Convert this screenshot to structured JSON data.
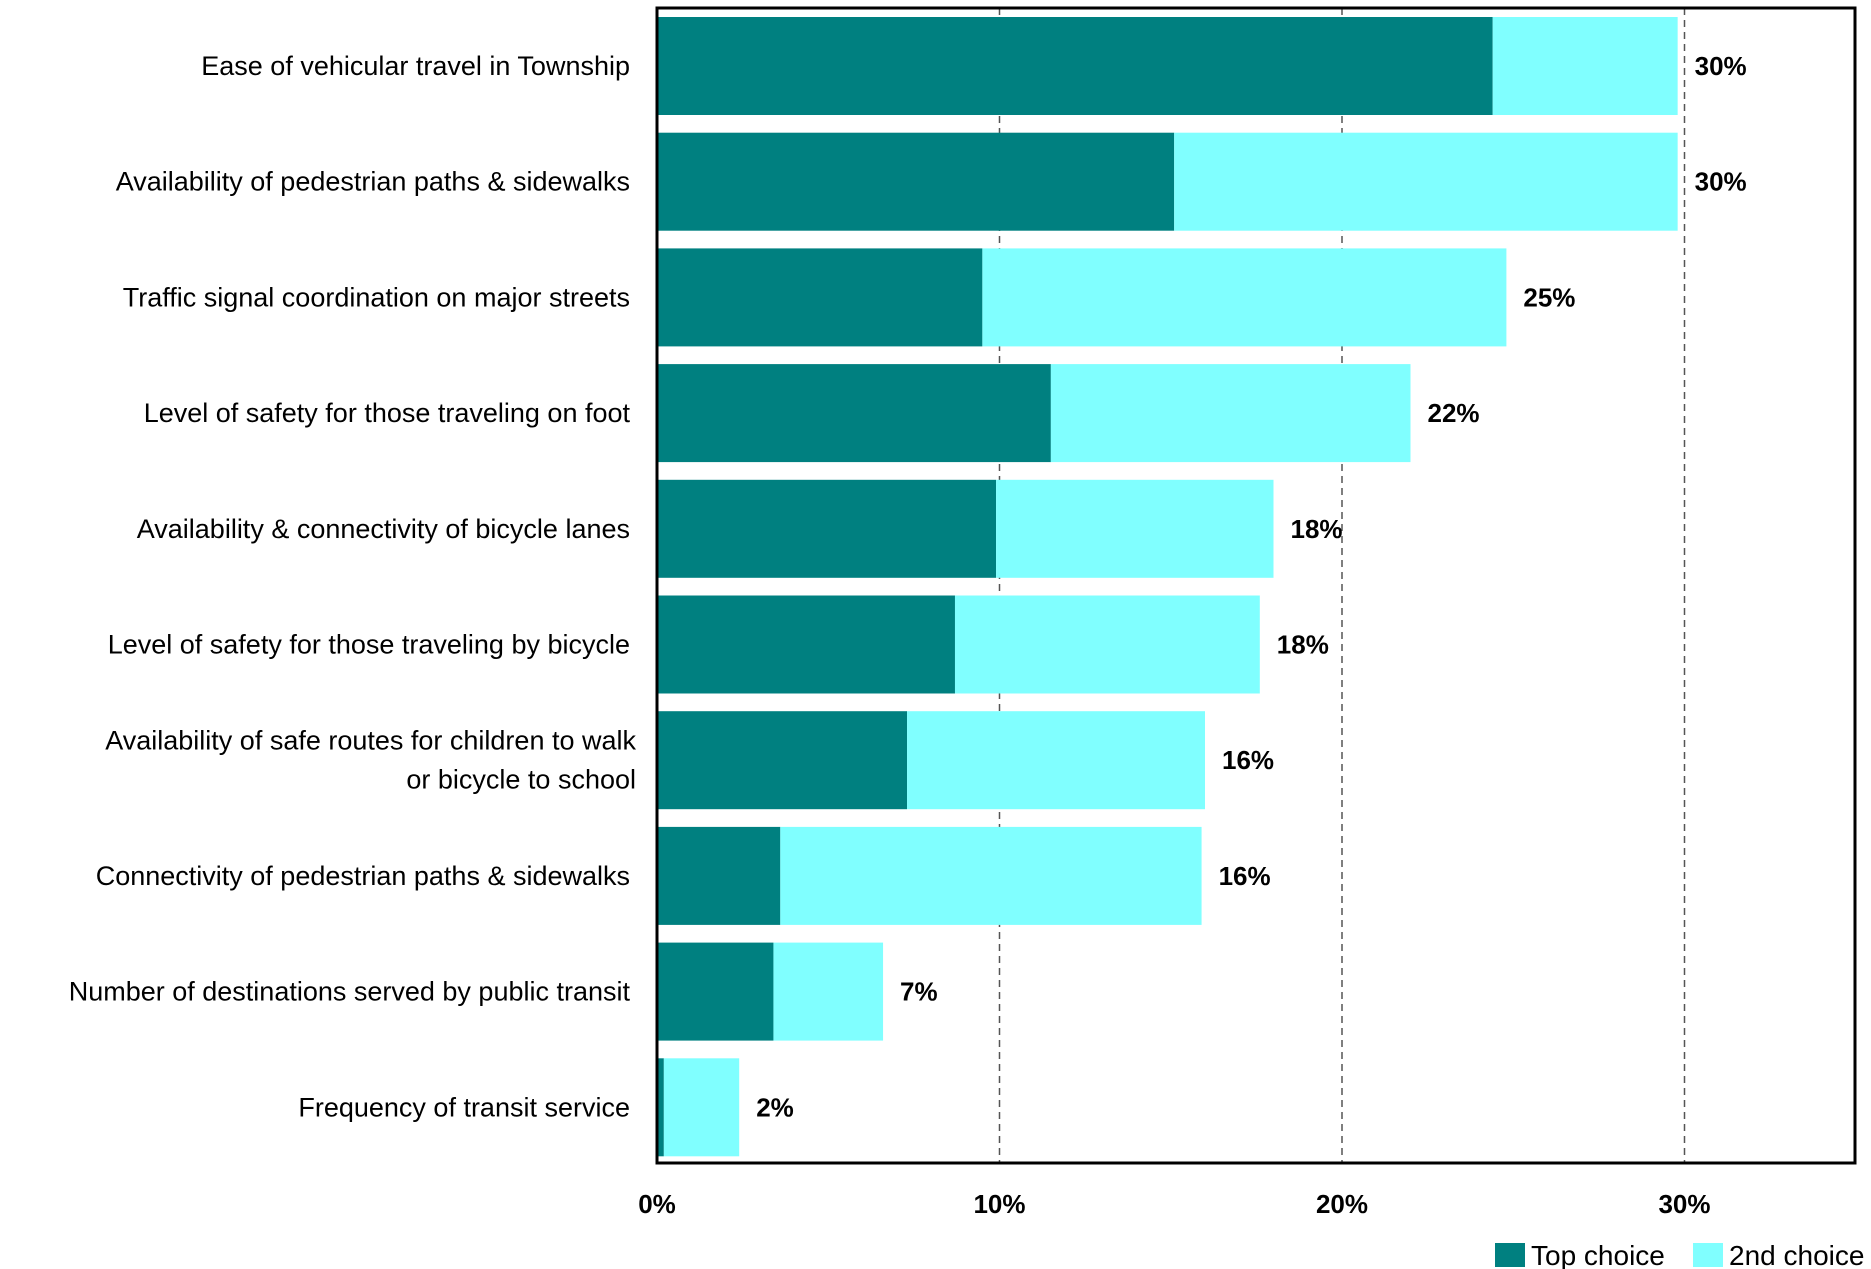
{
  "chart_data": {
    "type": "bar",
    "orientation": "horizontal",
    "stacked": true,
    "categories": [
      [
        "Ease of vehicular travel in Township"
      ],
      [
        "Availability of pedestrian paths & sidewalks"
      ],
      [
        "Traffic signal coordination on major streets"
      ],
      [
        "Level of safety for those traveling on foot"
      ],
      [
        "Availability & connectivity of bicycle lanes"
      ],
      [
        "Level of safety for those traveling by bicycle"
      ],
      [
        "Availability of safe routes for children to walk",
        "or bicycle to school"
      ],
      [
        "Connectivity of pedestrian paths & sidewalks"
      ],
      [
        "Number of destinations served by public transit"
      ],
      [
        "Frequency of transit service"
      ]
    ],
    "series": [
      {
        "name": "Top choice",
        "color": "#008080",
        "values": [
          24.4,
          15.1,
          9.5,
          11.5,
          9.9,
          8.7,
          7.3,
          3.6,
          3.4,
          0.2
        ]
      },
      {
        "name": "2nd choice",
        "color": "#80FFFF",
        "values": [
          5.4,
          14.7,
          15.3,
          10.5,
          8.1,
          8.9,
          8.7,
          12.3,
          3.2,
          2.2
        ]
      }
    ],
    "total_labels": [
      "30%",
      "30%",
      "25%",
      "22%",
      "18%",
      "18%",
      "16%",
      "16%",
      "7%",
      "2%"
    ],
    "xlim": [
      0,
      35
    ],
    "xticks": [
      0,
      10,
      20,
      30
    ],
    "xtick_labels": [
      "0%",
      "10%",
      "20%",
      "30%"
    ],
    "grid": "vertical dashed at tick positions",
    "legend_position": "bottom-right",
    "title": "",
    "xlabel": "",
    "ylabel": ""
  }
}
